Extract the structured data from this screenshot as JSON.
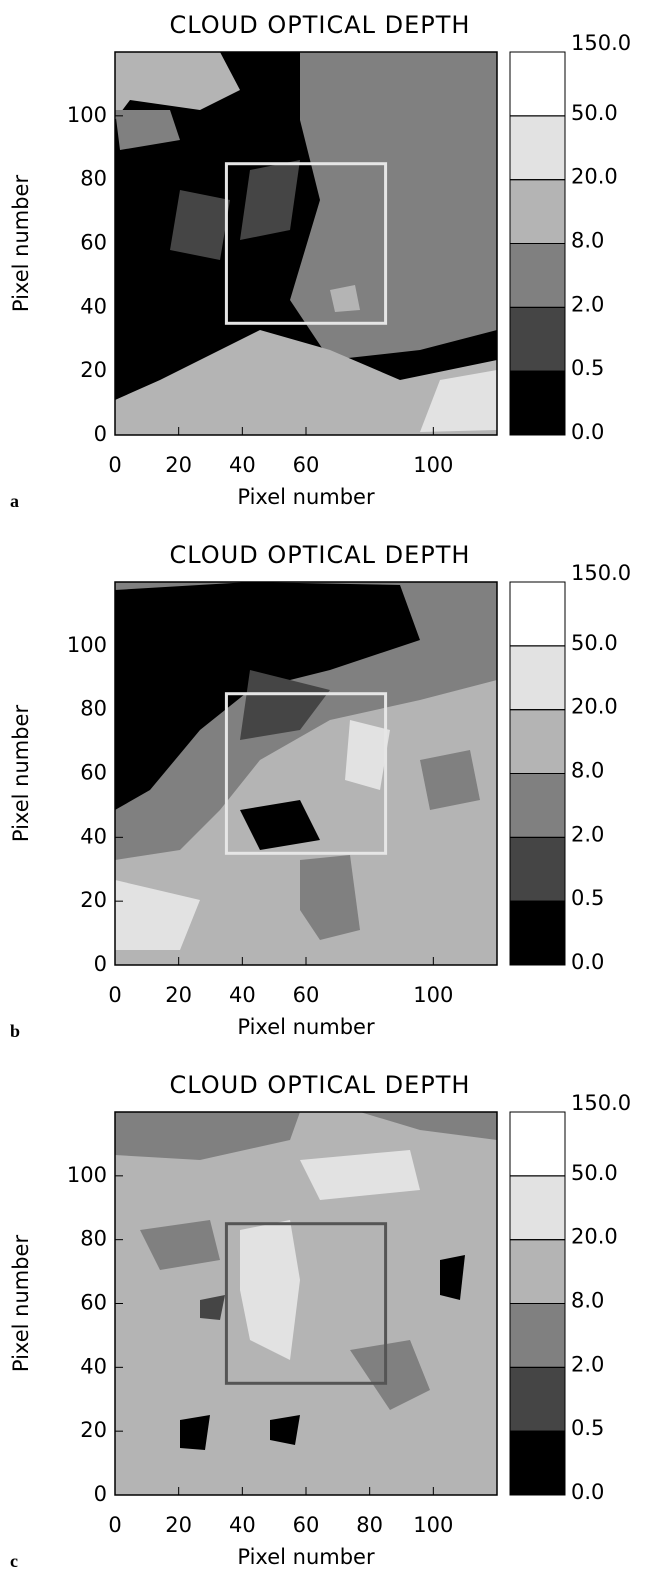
{
  "chart_data": [
    {
      "type": "heatmap",
      "panel": "a",
      "title": "CLOUD OPTICAL DEPTH",
      "xlabel": "Pixel number",
      "ylabel": "Pixel number",
      "xlim": [
        0,
        120
      ],
      "ylim": [
        0,
        120
      ],
      "xticks": [
        0,
        20,
        40,
        60,
        100
      ],
      "yticks": [
        0,
        20,
        40,
        60,
        80,
        100
      ],
      "box": {
        "x": [
          35,
          85
        ],
        "y": [
          35,
          85
        ],
        "color": "#e6e6e6"
      },
      "colorbar": {
        "ticks": [
          {
            "value": 0,
            "label": "0.0"
          },
          {
            "value": 0.5,
            "label": "0.5"
          },
          {
            "value": 2,
            "label": "2.0"
          },
          {
            "value": 8,
            "label": "8.0"
          },
          {
            "value": 20,
            "label": "20.0"
          },
          {
            "value": 50,
            "label": "50.0"
          },
          {
            "value": 150,
            "label": "150.0"
          }
        ],
        "colors": [
          "#000000",
          "#454545",
          "#808080",
          "#b4b4b4",
          "#e2e2e2",
          "#ffffff"
        ]
      }
    },
    {
      "type": "heatmap",
      "panel": "b",
      "title": "CLOUD OPTICAL DEPTH",
      "xlabel": "Pixel number",
      "ylabel": "Pixel number",
      "xlim": [
        0,
        120
      ],
      "ylim": [
        0,
        120
      ],
      "xticks": [
        0,
        20,
        40,
        60,
        100
      ],
      "yticks": [
        0,
        20,
        40,
        60,
        80,
        100
      ],
      "box": {
        "x": [
          35,
          85
        ],
        "y": [
          35,
          85
        ],
        "color": "#e6e6e6"
      },
      "colorbar": {
        "ticks": [
          {
            "value": 0,
            "label": "0.0"
          },
          {
            "value": 0.5,
            "label": "0.5"
          },
          {
            "value": 2,
            "label": "2.0"
          },
          {
            "value": 8,
            "label": "8.0"
          },
          {
            "value": 20,
            "label": "20.0"
          },
          {
            "value": 50,
            "label": "50.0"
          },
          {
            "value": 150,
            "label": "150.0"
          }
        ],
        "colors": [
          "#000000",
          "#454545",
          "#808080",
          "#b4b4b4",
          "#e2e2e2",
          "#ffffff"
        ]
      }
    },
    {
      "type": "heatmap",
      "panel": "c",
      "title": "CLOUD OPTICAL DEPTH",
      "xlabel": "Pixel number",
      "ylabel": "Pixel number",
      "xlim": [
        0,
        120
      ],
      "ylim": [
        0,
        120
      ],
      "xticks": [
        0,
        20,
        40,
        60,
        80,
        100
      ],
      "yticks": [
        0,
        20,
        40,
        60,
        80,
        100
      ],
      "box": {
        "x": [
          35,
          85
        ],
        "y": [
          35,
          85
        ],
        "color": "#555555"
      },
      "colorbar": {
        "ticks": [
          {
            "value": 0,
            "label": "0.0"
          },
          {
            "value": 0.5,
            "label": "0.5"
          },
          {
            "value": 2,
            "label": "2.0"
          },
          {
            "value": 8,
            "label": "8.0"
          },
          {
            "value": 20,
            "label": "20.0"
          },
          {
            "value": 50,
            "label": "50.0"
          },
          {
            "value": 150,
            "label": "150.0"
          }
        ],
        "colors": [
          "#000000",
          "#454545",
          "#808080",
          "#b4b4b4",
          "#e2e2e2",
          "#ffffff"
        ]
      }
    }
  ]
}
